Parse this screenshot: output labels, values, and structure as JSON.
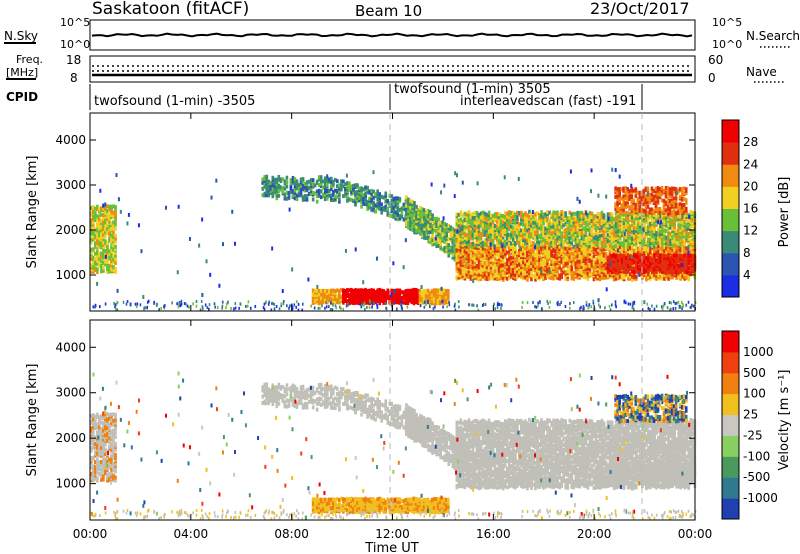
{
  "header": {
    "title": "Saskatoon (fitACF)",
    "beam": "Beam 10",
    "date": "23/Oct/2017"
  },
  "noise_panel": {
    "left_label": "N.Sky",
    "right_label": "N.Search",
    "left_ticks": [
      "10^5",
      "10^0"
    ],
    "right_ticks": [
      "10^5",
      "10^0"
    ]
  },
  "freq_panel": {
    "left_label_1": "Freq.",
    "left_label_2": "[MHz]",
    "right_label": "Nave",
    "left_ticks": [
      "18",
      "8"
    ],
    "right_ticks": [
      "60",
      "0"
    ]
  },
  "cpid": {
    "label": "CPID",
    "segments": [
      "twofsound (1-min) -3505",
      "twofsound (1-min) 3505",
      "interleavedscan (fast) -191"
    ]
  },
  "chart_data": [
    {
      "type": "heatmap",
      "name": "power-panel",
      "ylabel": "Slant Range [km]",
      "ylim": [
        200,
        4600
      ],
      "yticks": [
        1000,
        2000,
        3000,
        4000
      ],
      "x_ticks": [
        "00:00",
        "04:00",
        "08:00",
        "12:00",
        "16:00",
        "20:00",
        "00:00"
      ],
      "colorbar_label": "Power [dB]",
      "colorbar_ticks": [
        "28",
        "24",
        "20",
        "16",
        "12",
        "8",
        "4"
      ],
      "colorscale": [
        "#1a2ee6",
        "#2a55b0",
        "#3a8a78",
        "#6abf3a",
        "#f0d020",
        "#f08a10",
        "#e03010",
        "#f00000"
      ],
      "vmin": 0,
      "vmax": 32
    },
    {
      "type": "heatmap",
      "name": "velocity-panel",
      "ylabel": "Slant Range [km]",
      "ylim": [
        200,
        4600
      ],
      "yticks": [
        1000,
        2000,
        3000,
        4000
      ],
      "x_ticks": [
        "00:00",
        "04:00",
        "08:00",
        "12:00",
        "16:00",
        "20:00",
        "00:00"
      ],
      "xlabel": "Time UT",
      "colorbar_label": "Velocity [m s⁻¹]",
      "colorbar_ticks": [
        "1000",
        "500",
        "100",
        "25",
        "-25",
        "-100",
        "-500",
        "-1000"
      ],
      "colorscale": [
        "#2040b0",
        "#2e7a90",
        "#4a9a60",
        "#8ad060",
        "#c8c8c0",
        "#f0c020",
        "#f08010",
        "#f04010",
        "#f00000"
      ]
    }
  ],
  "colors": {
    "ground_scatter": "#c0c0b8",
    "axis": "#000000",
    "dashed_markers": "#b0b0b0"
  }
}
